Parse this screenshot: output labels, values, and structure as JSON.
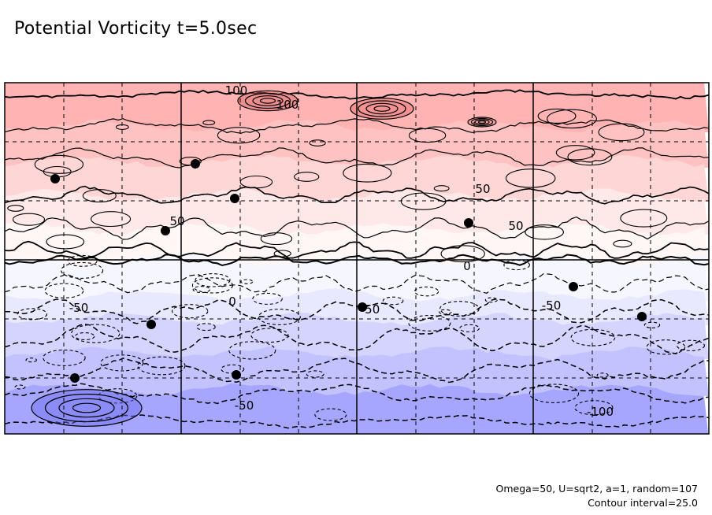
{
  "title": "Potential Vorticity t=5.0sec",
  "footer": {
    "params": "Omega=50, U=sqrt2, a=1, random=107",
    "interval": "Contour interval=25.0"
  },
  "chart_data": {
    "type": "contour",
    "field": "potential vorticity",
    "time": "5.0sec",
    "contour_interval": 25.0,
    "positive_contours": "solid",
    "negative_contours": "dashed",
    "shading": {
      "positive_color": "#ff9a9a",
      "negative_color": "#8c8cff",
      "zero_color": "#ffffff"
    },
    "grid": true,
    "contour_labels": [
      {
        "text": "100"
      },
      {
        "text": "100"
      },
      {
        "text": "50"
      },
      {
        "text": "50"
      },
      {
        "text": "50"
      },
      {
        "text": "0"
      },
      {
        "text": "0"
      },
      {
        "text": "-50"
      },
      {
        "text": "-50"
      },
      {
        "text": "-50"
      },
      {
        "text": "-50"
      },
      {
        "text": "-100"
      },
      {
        "text": "-100"
      }
    ],
    "bands_top_to_bottom": [
      {
        "level": "100 to 125",
        "color": "#ffb3b3"
      },
      {
        "level": "75 to 100",
        "color": "#ffc2c2"
      },
      {
        "level": "50 to 75",
        "color": "#ffd6d6"
      },
      {
        "level": "25 to 50",
        "color": "#ffe8e8"
      },
      {
        "level": "0 to 25",
        "color": "#fff6f6"
      },
      {
        "level": "-25 to 0",
        "color": "#f6f6ff"
      },
      {
        "level": "-50 to -25",
        "color": "#e8e8ff"
      },
      {
        "level": "-75 to -50",
        "color": "#d4d4ff"
      },
      {
        "level": "-100 to -75",
        "color": "#c2c2ff"
      },
      {
        "level": "-125 to -100",
        "color": "#a6a6ff"
      }
    ]
  }
}
